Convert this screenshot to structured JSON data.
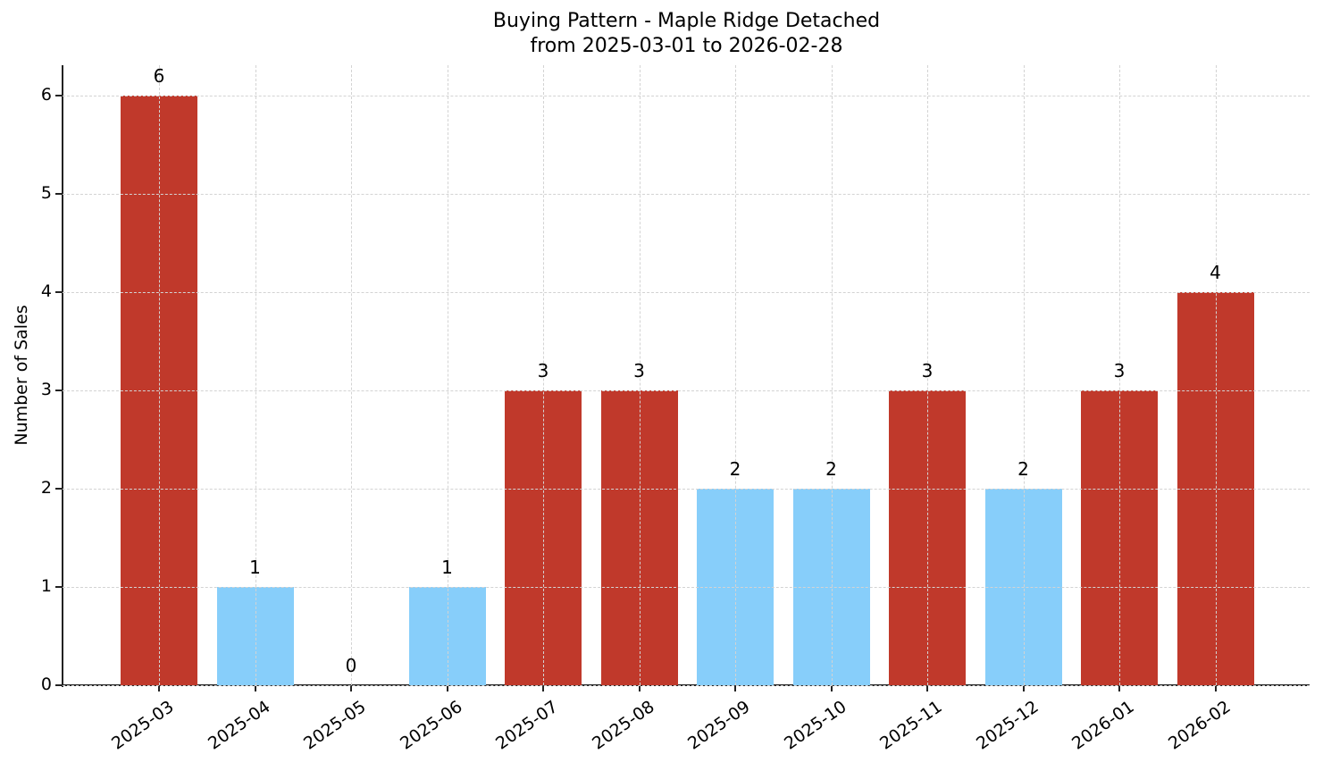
{
  "chart_data": {
    "type": "bar",
    "title": "Buying Pattern - Maple Ridge Detached",
    "subtitle": "from 2025-03-01 to 2026-02-28",
    "xlabel": "",
    "ylabel": "Number of Sales",
    "ylim": [
      0,
      6.3
    ],
    "yticks": [
      "0",
      "1",
      "2",
      "3",
      "4",
      "5",
      "6"
    ],
    "grid": true,
    "legend": null,
    "categories": [
      "2025-03",
      "2025-04",
      "2025-05",
      "2025-06",
      "2025-07",
      "2025-08",
      "2025-09",
      "2025-10",
      "2025-11",
      "2025-12",
      "2026-01",
      "2026-02"
    ],
    "values": [
      6,
      1,
      0,
      1,
      3,
      3,
      2,
      2,
      3,
      2,
      3,
      4
    ],
    "bar_labels": [
      "6",
      "1",
      "0",
      "1",
      "3",
      "3",
      "2",
      "2",
      "3",
      "2",
      "3",
      "4"
    ],
    "colors": {
      "high": "#C0392B",
      "low": "#87CEFA"
    },
    "color_rule": "values >= 3 shown in high color, values < 3 shown in low color"
  }
}
